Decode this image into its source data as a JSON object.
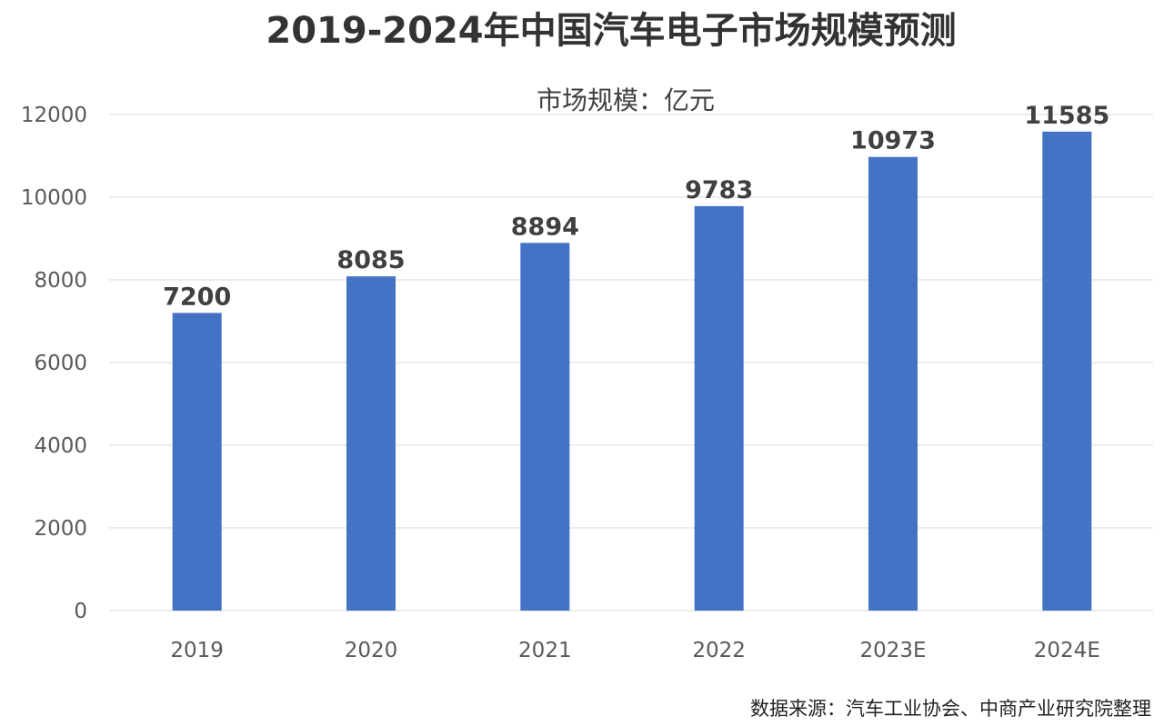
{
  "title": "2019-2024年中国汽车电子市场规模预测",
  "source": "数据来源：汽车工业协会、中商产业研究院整理",
  "chart_data": {
    "type": "bar",
    "title": "2019-2024年中国汽车电子市场规模预测",
    "subtitle": "市场规模：亿元",
    "categories": [
      "2019",
      "2020",
      "2021",
      "2022",
      "2023E",
      "2024E"
    ],
    "series": [
      {
        "values": [
          7200,
          8085,
          8894,
          9783,
          10973,
          11585
        ],
        "color": "#4472c4"
      }
    ],
    "data_labels": [
      "7200",
      "8085",
      "8894",
      "9783",
      "10973",
      "11585"
    ],
    "y_ticks": [
      "0",
      "2000",
      "4000",
      "6000",
      "8000",
      "10000",
      "12000"
    ],
    "ylim": [
      0,
      12000
    ],
    "xlabel": "",
    "ylabel": "",
    "grid": true,
    "legend": "none"
  }
}
